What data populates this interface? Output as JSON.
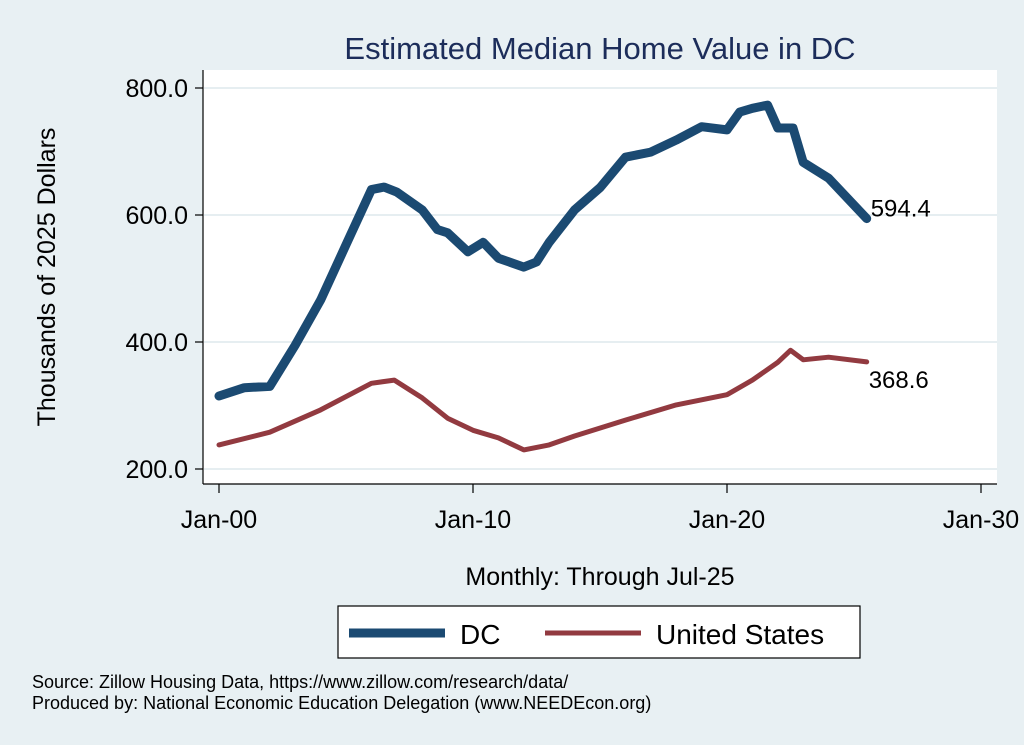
{
  "chart_data": {
    "type": "line",
    "title": "Estimated Median Home Value in DC",
    "xlabel": "Monthly: Through Jul-25",
    "ylabel": "Thousands of 2025 Dollars",
    "ylim": [
      200,
      800
    ],
    "xlim": [
      2000,
      2030
    ],
    "yticks": [
      200,
      400,
      600,
      800
    ],
    "ytick_labels": [
      "200.0",
      "400.0",
      "600.0",
      "800.0"
    ],
    "xticks": [
      2000,
      2010,
      2020,
      2030
    ],
    "xtick_labels": [
      "Jan-00",
      "Jan-10",
      "Jan-20",
      "Jan-30"
    ],
    "grid": true,
    "legend_position": "bottom",
    "series": [
      {
        "name": "DC",
        "color": "#1b4a72",
        "end_label": "594.4",
        "x": [
          2000.0,
          2001.0,
          2002.0,
          2003.0,
          2004.0,
          2005.0,
          2006.0,
          2006.5,
          2007.0,
          2008.0,
          2008.6,
          2009.0,
          2009.8,
          2010.4,
          2011.0,
          2012.0,
          2012.5,
          2013.0,
          2014.0,
          2015.0,
          2016.0,
          2017.0,
          2018.0,
          2019.0,
          2020.0,
          2020.5,
          2021.0,
          2021.6,
          2022.0,
          2022.6,
          2023.0,
          2024.0,
          2025.5
        ],
        "values": [
          315,
          328,
          330,
          395,
          466,
          553,
          640,
          644,
          636,
          608,
          577,
          572,
          542,
          557,
          532,
          518,
          526,
          557,
          608,
          643,
          691,
          699,
          718,
          739,
          734,
          762,
          768,
          773,
          737,
          737,
          683,
          658,
          594.4
        ]
      },
      {
        "name": "United States",
        "color": "#923a40",
        "end_label": "368.6",
        "x": [
          2000.0,
          2002.0,
          2004.0,
          2006.0,
          2006.9,
          2008.0,
          2009.0,
          2010.0,
          2011.0,
          2012.0,
          2013.0,
          2014.0,
          2016.0,
          2018.0,
          2020.0,
          2021.0,
          2022.0,
          2022.5,
          2023.0,
          2024.0,
          2025.5
        ],
        "values": [
          238,
          258,
          293,
          335,
          340,
          312,
          280,
          261,
          249,
          230,
          238,
          252,
          277,
          301,
          317,
          340,
          368,
          387,
          372,
          376,
          368.6
        ]
      }
    ]
  },
  "notes": {
    "source": "Source: Zillow Housing Data, https://www.zillow.com/research/data/",
    "produced_by": "Produced by: National Economic Education Delegation (www.NEEDEcon.org)"
  }
}
